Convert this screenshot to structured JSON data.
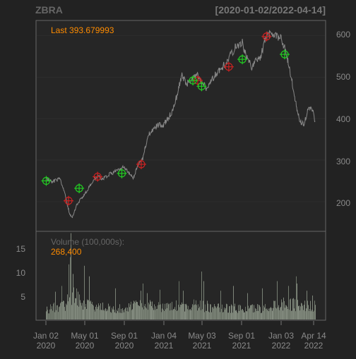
{
  "header": {
    "ticker": "ZBRA",
    "date_range": "[2020-01-02/2022-04-14]"
  },
  "price_panel": {
    "last_label": "Last 393.679993",
    "y_ticks": [
      "600",
      "500",
      "400",
      "300",
      "200"
    ]
  },
  "volume_panel": {
    "title": "Volume (100,000s):",
    "value": "268,400",
    "y_ticks": [
      "15",
      "10",
      "5"
    ]
  },
  "x_axis": {
    "ticks": [
      {
        "top": "Jan 02",
        "bottom": "2020"
      },
      {
        "top": "May 01",
        "bottom": "2020"
      },
      {
        "top": "Sep 01",
        "bottom": "2020"
      },
      {
        "top": "Jan 04",
        "bottom": "2021"
      },
      {
        "top": "May 03",
        "bottom": "2021"
      },
      {
        "top": "Sep 01",
        "bottom": "2021"
      },
      {
        "top": "Jan 03",
        "bottom": "2022"
      },
      {
        "top": "Apr 14",
        "bottom": "2022"
      }
    ]
  },
  "colors": {
    "background": "#222222",
    "panel": "#262626",
    "price_line": "#888888",
    "accent": "#ff8c00",
    "buy": "#22cc22",
    "sell": "#cc2222"
  },
  "chart_data": {
    "type": "line",
    "ticker": "ZBRA",
    "start": "2020-01-02",
    "end": "2022-04-14",
    "last": 393.679993,
    "ylim": [
      130,
      635
    ],
    "volume_ylim": [
      0,
      19
    ],
    "price_path": [
      [
        "2020-01-02",
        255
      ],
      [
        "2020-01-22",
        248
      ],
      [
        "2020-02-14",
        255
      ],
      [
        "2020-02-28",
        225
      ],
      [
        "2020-03-16",
        168
      ],
      [
        "2020-03-23",
        160
      ],
      [
        "2020-04-08",
        195
      ],
      [
        "2020-04-29",
        215
      ],
      [
        "2020-05-12",
        230
      ],
      [
        "2020-05-26",
        250
      ],
      [
        "2020-06-10",
        262
      ],
      [
        "2020-06-25",
        255
      ],
      [
        "2020-07-14",
        265
      ],
      [
        "2020-07-28",
        270
      ],
      [
        "2020-08-14",
        275
      ],
      [
        "2020-08-31",
        283
      ],
      [
        "2020-09-15",
        270
      ],
      [
        "2020-09-29",
        258
      ],
      [
        "2020-10-14",
        290
      ],
      [
        "2020-10-28",
        305
      ],
      [
        "2020-11-13",
        360
      ],
      [
        "2020-11-27",
        372
      ],
      [
        "2020-12-14",
        385
      ],
      [
        "2020-12-30",
        385
      ],
      [
        "2021-01-14",
        400
      ],
      [
        "2021-01-28",
        420
      ],
      [
        "2021-02-12",
        460
      ],
      [
        "2021-02-25",
        505
      ],
      [
        "2021-03-12",
        485
      ],
      [
        "2021-03-26",
        490
      ],
      [
        "2021-04-14",
        505
      ],
      [
        "2021-04-28",
        485
      ],
      [
        "2021-05-12",
        475
      ],
      [
        "2021-05-26",
        490
      ],
      [
        "2021-06-10",
        505
      ],
      [
        "2021-06-25",
        520
      ],
      [
        "2021-07-14",
        535
      ],
      [
        "2021-07-28",
        555
      ],
      [
        "2021-08-13",
        575
      ],
      [
        "2021-08-31",
        585
      ],
      [
        "2021-09-15",
        545
      ],
      [
        "2021-09-29",
        525
      ],
      [
        "2021-10-14",
        540
      ],
      [
        "2021-10-28",
        550
      ],
      [
        "2021-11-12",
        595
      ],
      [
        "2021-11-29",
        610
      ],
      [
        "2021-12-14",
        600
      ],
      [
        "2021-12-30",
        595
      ],
      [
        "2022-01-14",
        560
      ],
      [
        "2022-01-28",
        510
      ],
      [
        "2022-02-11",
        450
      ],
      [
        "2022-02-25",
        395
      ],
      [
        "2022-03-11",
        385
      ],
      [
        "2022-03-25",
        430
      ],
      [
        "2022-04-08",
        415
      ],
      [
        "2022-04-14",
        394
      ]
    ],
    "buy_signals": [
      [
        "2020-01-03",
        250
      ],
      [
        "2020-04-14",
        232
      ],
      [
        "2020-08-24",
        268
      ],
      [
        "2021-04-01",
        492
      ],
      [
        "2021-04-28",
        478
      ],
      [
        "2021-09-01",
        543
      ],
      [
        "2022-01-10",
        555
      ]
    ],
    "sell_signals": [
      [
        "2020-03-12",
        202
      ],
      [
        "2020-06-10",
        260
      ],
      [
        "2020-10-23",
        290
      ],
      [
        "2021-04-16",
        492
      ],
      [
        "2021-07-21",
        525
      ],
      [
        "2021-11-15",
        598
      ]
    ],
    "volume_profile": [
      [
        "2020-01-02",
        2.2
      ],
      [
        "2020-03-01",
        3.0
      ],
      [
        "2020-03-20",
        5.5
      ],
      [
        "2020-05-01",
        3.2
      ],
      [
        "2020-07-01",
        2.4
      ],
      [
        "2020-09-01",
        2.3
      ],
      [
        "2020-11-01",
        3.2
      ],
      [
        "2021-01-01",
        2.6
      ],
      [
        "2021-03-01",
        3.0
      ],
      [
        "2021-05-01",
        2.8
      ],
      [
        "2021-07-01",
        2.4
      ],
      [
        "2021-09-01",
        2.2
      ],
      [
        "2021-11-01",
        2.4
      ],
      [
        "2022-01-01",
        3.4
      ],
      [
        "2022-03-01",
        3.0
      ],
      [
        "2022-04-14",
        2.7
      ]
    ],
    "volume_spikes": [
      [
        "2020-01-31",
        5.8
      ],
      [
        "2020-02-20",
        7.0
      ],
      [
        "2020-03-12",
        11.5
      ],
      [
        "2020-03-16",
        13.0
      ],
      [
        "2020-03-19",
        18.0
      ],
      [
        "2020-03-26",
        9.5
      ],
      [
        "2020-04-30",
        11.2
      ],
      [
        "2020-05-14",
        9.0
      ],
      [
        "2020-08-04",
        6.5
      ],
      [
        "2020-10-21",
        6.0
      ],
      [
        "2020-10-28",
        7.5
      ],
      [
        "2020-11-09",
        5.5
      ],
      [
        "2020-12-18",
        6.2
      ],
      [
        "2021-02-16",
        8.0
      ],
      [
        "2021-03-02",
        6.0
      ],
      [
        "2021-04-27",
        10.0
      ],
      [
        "2021-05-04",
        8.0
      ],
      [
        "2021-06-25",
        6.0
      ],
      [
        "2021-08-03",
        7.0
      ],
      [
        "2021-09-17",
        5.5
      ],
      [
        "2021-11-02",
        6.5
      ],
      [
        "2021-12-17",
        8.0
      ],
      [
        "2022-01-20",
        7.0
      ],
      [
        "2022-02-15",
        9.0
      ],
      [
        "2022-02-17",
        7.5
      ],
      [
        "2022-03-18",
        6.0
      ],
      [
        "2022-04-05",
        5.0
      ]
    ]
  }
}
